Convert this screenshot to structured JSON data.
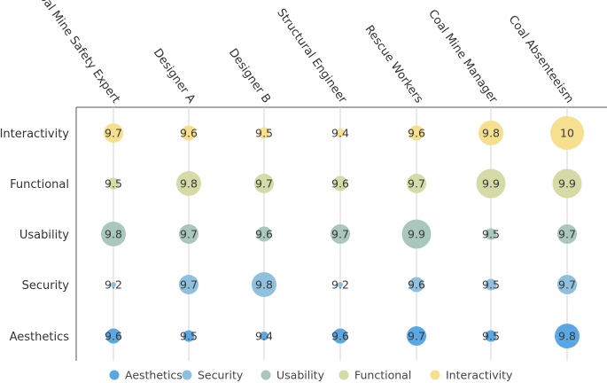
{
  "chart_data": {
    "type": "bubble-matrix",
    "title": "",
    "categories": [
      "Coal Mine Safety Expert",
      "Designer A",
      "Designer B",
      "Structural Engineer",
      "Rescue Workers",
      "Coal Mine Manager",
      "Coal Absenteeism"
    ],
    "series": [
      {
        "name": "Interactivity",
        "color": "#f6e08f",
        "values": [
          9.7,
          9.6,
          9.5,
          9.4,
          9.6,
          9.8,
          10
        ]
      },
      {
        "name": "Functional",
        "color": "#d4dba6",
        "values": [
          9.5,
          9.8,
          9.7,
          9.6,
          9.7,
          9.9,
          9.9
        ]
      },
      {
        "name": "Usability",
        "color": "#a9c7bc",
        "values": [
          9.8,
          9.7,
          9.6,
          9.7,
          9.9,
          9.5,
          9.7
        ]
      },
      {
        "name": "Security",
        "color": "#8fc0dd",
        "values": [
          9.2,
          9.7,
          9.8,
          9.2,
          9.6,
          9.5,
          9.7
        ]
      },
      {
        "name": "Aesthetics",
        "color": "#5aa7e4",
        "values": [
          9.6,
          9.5,
          9.4,
          9.6,
          9.7,
          9.5,
          9.8
        ]
      }
    ],
    "legend": [
      "Aesthetics",
      "Security",
      "Usability",
      "Functional",
      "Interactivity"
    ],
    "size_encoding": "value",
    "xlabel": "",
    "ylabel": ""
  }
}
